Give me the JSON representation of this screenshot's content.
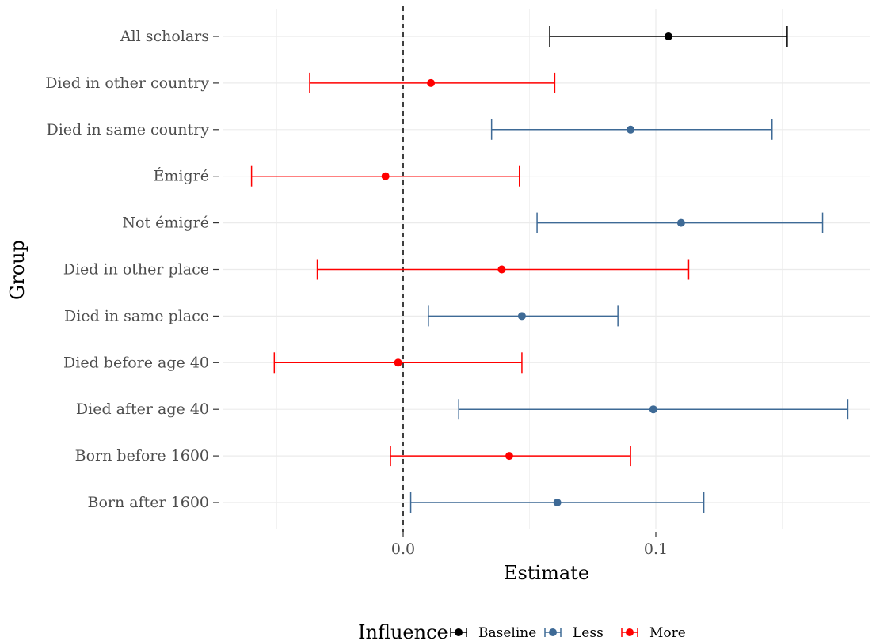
{
  "chart_data": {
    "type": "scatter",
    "variant": "point-range",
    "xlabel": "Estimate",
    "ylabel": "Group",
    "xlim": [
      -0.058,
      0.18
    ],
    "x_ticks": [
      0.0,
      0.1
    ],
    "x_tick_labels": [
      "0.0",
      "0.1"
    ],
    "reference_line": {
      "x": 0,
      "style": "dashed"
    },
    "grid": true,
    "legend": {
      "title": "Influence",
      "position": "bottom",
      "entries": [
        {
          "name": "Baseline",
          "color": "#000000"
        },
        {
          "name": "Less",
          "color": "#3e6a96"
        },
        {
          "name": "More",
          "color": "#ff0000"
        }
      ]
    },
    "rows": [
      {
        "group": "All scholars",
        "influence": "Baseline",
        "estimate": 0.105,
        "low": 0.058,
        "high": 0.152
      },
      {
        "group": "Died in other country",
        "influence": "More",
        "estimate": 0.011,
        "low": -0.037,
        "high": 0.06
      },
      {
        "group": "Died in same country",
        "influence": "Less",
        "estimate": 0.09,
        "low": 0.035,
        "high": 0.146
      },
      {
        "group": "Émigré",
        "influence": "More",
        "estimate": -0.007,
        "low": -0.06,
        "high": 0.046
      },
      {
        "group": "Not émigré",
        "influence": "Less",
        "estimate": 0.11,
        "low": 0.053,
        "high": 0.166
      },
      {
        "group": "Died in other place",
        "influence": "More",
        "estimate": 0.039,
        "low": -0.034,
        "high": 0.113
      },
      {
        "group": "Died in same place",
        "influence": "Less",
        "estimate": 0.047,
        "low": 0.01,
        "high": 0.085
      },
      {
        "group": "Died before age 40",
        "influence": "More",
        "estimate": -0.002,
        "low": -0.051,
        "high": 0.047
      },
      {
        "group": "Died after age 40",
        "influence": "Less",
        "estimate": 0.099,
        "low": 0.022,
        "high": 0.176
      },
      {
        "group": "Born before 1600",
        "influence": "More",
        "estimate": 0.042,
        "low": -0.005,
        "high": 0.09
      },
      {
        "group": "Born after 1600",
        "influence": "Less",
        "estimate": 0.061,
        "low": 0.003,
        "high": 0.119
      }
    ]
  }
}
